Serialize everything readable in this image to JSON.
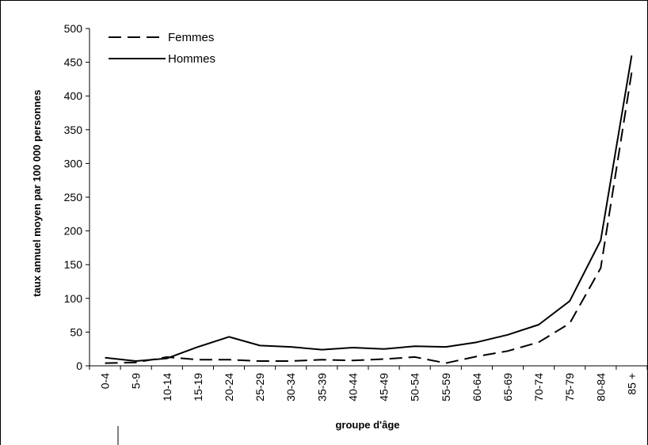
{
  "chart_data": {
    "type": "line",
    "title": "",
    "xlabel": "groupe d'âge",
    "ylabel": "taux annuel moyen par 100 000 personnes",
    "ylim": [
      0,
      500
    ],
    "yticks": [
      0,
      50,
      100,
      150,
      200,
      250,
      300,
      350,
      400,
      450,
      500
    ],
    "categories": [
      "0-4",
      "5-9",
      "10-14",
      "15-19",
      "20-24",
      "25-29",
      "30-34",
      "35-39",
      "40-44",
      "45-49",
      "50-54",
      "55-59",
      "60-64",
      "65-69",
      "70-74",
      "75-79",
      "80-84",
      "85 +"
    ],
    "legend_position": "top-left",
    "grid": false,
    "series": [
      {
        "name": "Femmes",
        "style": "dashed",
        "color": "#000000",
        "values": [
          4,
          5,
          13,
          9,
          9,
          7,
          7,
          9,
          8,
          10,
          13,
          4,
          14,
          22,
          35,
          63,
          145,
          435
        ]
      },
      {
        "name": "Hommes",
        "style": "solid",
        "color": "#000000",
        "values": [
          12,
          7,
          11,
          28,
          43,
          30,
          28,
          24,
          27,
          25,
          29,
          28,
          35,
          46,
          61,
          96,
          186,
          460
        ]
      }
    ]
  }
}
